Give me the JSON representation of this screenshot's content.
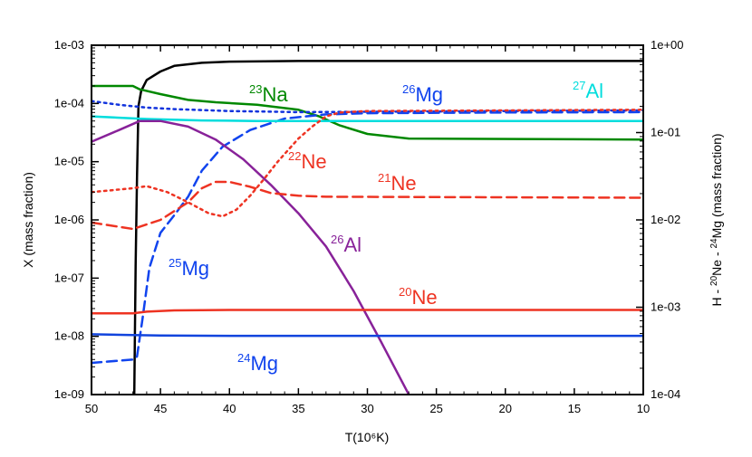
{
  "chart_data": {
    "type": "line",
    "xlabel": "T(10⁶K)",
    "ylabel_left": "X (mass fraction)",
    "ylabel_right_parts": {
      "a": "H - ",
      "b": "20",
      "c": "Ne - ",
      "d": "24",
      "e": "Mg (mass fraction)"
    },
    "x_range": [
      50,
      10
    ],
    "x_ticks": [
      50,
      45,
      40,
      35,
      30,
      25,
      20,
      15,
      10
    ],
    "y_left_range": [
      1e-09,
      0.001
    ],
    "y_left_ticks": [
      "1e-09",
      "1e-08",
      "1e-07",
      "1e-06",
      "1e-05",
      "1e-04",
      "1e-03"
    ],
    "y_right_range": [
      0.0001,
      1
    ],
    "y_right_ticks": [
      "1e-04",
      "1e-03",
      "1e-02",
      "1e-01",
      "1e+00"
    ],
    "series": [
      {
        "id": "h",
        "name": "H",
        "axis": "right",
        "color": "#000000",
        "dash": "solid",
        "points": [
          [
            46.9,
            0.0001
          ],
          [
            46.8,
            0.003
          ],
          [
            46.7,
            0.03
          ],
          [
            46.6,
            0.2
          ],
          [
            46.4,
            0.3
          ],
          [
            46.0,
            0.4
          ],
          [
            45.0,
            0.5
          ],
          [
            44.0,
            0.58
          ],
          [
            42.0,
            0.63
          ],
          [
            40.0,
            0.65
          ],
          [
            35.0,
            0.66
          ],
          [
            10.0,
            0.66
          ]
        ]
      },
      {
        "id": "na23",
        "name": "23Na",
        "axis": "left",
        "color": "#008800",
        "dash": "solid",
        "points": [
          [
            50,
            0.0002
          ],
          [
            47,
            0.0002
          ],
          [
            46.5,
            0.000175
          ],
          [
            45,
            0.000145
          ],
          [
            43,
            0.000115
          ],
          [
            41,
            0.000105
          ],
          [
            38,
            9.5e-05
          ],
          [
            35,
            7.8e-05
          ],
          [
            33.5,
            6e-05
          ],
          [
            32,
            4.2e-05
          ],
          [
            30,
            3e-05
          ],
          [
            27,
            2.5e-05
          ],
          [
            10,
            2.4e-05
          ]
        ]
      },
      {
        "id": "mg26",
        "name": "26Mg",
        "axis": "left",
        "color": "#1133dd",
        "dash": "dotted",
        "points": [
          [
            50,
            0.00011
          ],
          [
            48,
            9.5e-05
          ],
          [
            46,
            8.5e-05
          ],
          [
            44,
            8e-05
          ],
          [
            40,
            7.4e-05
          ],
          [
            35,
            7.1e-05
          ],
          [
            30,
            7.2e-05
          ],
          [
            20,
            7.4e-05
          ],
          [
            10,
            7.6e-05
          ]
        ]
      },
      {
        "id": "mg25",
        "name": "25Mg",
        "axis": "left",
        "color": "#1144ee",
        "dash": "dashed",
        "points": [
          [
            50,
            3.5e-09
          ],
          [
            47,
            4e-09
          ],
          [
            46.7,
            4.5e-09
          ],
          [
            46.3,
            2e-08
          ],
          [
            45.8,
            1.5e-07
          ],
          [
            45,
            6e-07
          ],
          [
            44,
            1.2e-06
          ],
          [
            43,
            2.5e-06
          ],
          [
            42,
            7e-06
          ],
          [
            40.5,
            1.8e-05
          ],
          [
            38.5,
            3.5e-05
          ],
          [
            36,
            5.5e-05
          ],
          [
            33,
            6.5e-05
          ],
          [
            30,
            6.8e-05
          ],
          [
            20,
            7e-05
          ],
          [
            10,
            7.1e-05
          ]
        ]
      },
      {
        "id": "al27",
        "name": "27Al",
        "axis": "left",
        "color": "#00dddd",
        "dash": "solid",
        "points": [
          [
            50,
            6e-05
          ],
          [
            46,
            5.4e-05
          ],
          [
            42,
            5.1e-05
          ],
          [
            38,
            5e-05
          ],
          [
            10,
            5e-05
          ]
        ]
      },
      {
        "id": "al26",
        "name": "26Al",
        "axis": "left",
        "color": "#882299",
        "dash": "solid",
        "points": [
          [
            50,
            2.2e-05
          ],
          [
            48,
            3.5e-05
          ],
          [
            46.5,
            5e-05
          ],
          [
            45,
            5e-05
          ],
          [
            43,
            4e-05
          ],
          [
            41,
            2.4e-05
          ],
          [
            39,
            1.1e-05
          ],
          [
            37,
            4e-06
          ],
          [
            35,
            1.3e-06
          ],
          [
            33,
            3.5e-07
          ],
          [
            31,
            6e-08
          ],
          [
            29,
            8e-09
          ],
          [
            27,
            1e-09
          ]
        ]
      },
      {
        "id": "ne22",
        "name": "22Ne",
        "axis": "left",
        "color": "#ee3322",
        "dash": "dotted",
        "points": [
          [
            50,
            3e-06
          ],
          [
            47,
            3.5e-06
          ],
          [
            46,
            3.8e-06
          ],
          [
            44.5,
            3e-06
          ],
          [
            43,
            2e-06
          ],
          [
            41.5,
            1.3e-06
          ],
          [
            40.5,
            1.15e-06
          ],
          [
            39.5,
            1.5e-06
          ],
          [
            38.5,
            2.6e-06
          ],
          [
            37.5,
            5e-06
          ],
          [
            36.5,
            1e-05
          ],
          [
            35,
            2.5e-05
          ],
          [
            34,
            4e-05
          ],
          [
            33,
            6e-05
          ],
          [
            32,
            7e-05
          ],
          [
            30,
            7.4e-05
          ],
          [
            20,
            7.6e-05
          ],
          [
            10,
            7.8e-05
          ]
        ]
      },
      {
        "id": "ne21",
        "name": "21Ne",
        "axis": "left",
        "color": "#ee3322",
        "dash": "dashed",
        "points": [
          [
            50,
            9e-07
          ],
          [
            47,
            7e-07
          ],
          [
            45,
            1e-06
          ],
          [
            43,
            2e-06
          ],
          [
            42,
            3.5e-06
          ],
          [
            41,
            4.5e-06
          ],
          [
            40,
            4.5e-06
          ],
          [
            38.5,
            3.7e-06
          ],
          [
            37,
            2.9e-06
          ],
          [
            35,
            2.6e-06
          ],
          [
            33,
            2.5e-06
          ],
          [
            10,
            2.4e-06
          ]
        ]
      },
      {
        "id": "ne20",
        "name": "20Ne",
        "axis": "right",
        "color": "#ee3322",
        "dash": "solid",
        "points": [
          [
            50,
            0.00085
          ],
          [
            47,
            0.00085
          ],
          [
            46,
            0.00089
          ],
          [
            44,
            0.00092
          ],
          [
            40,
            0.00093
          ],
          [
            10,
            0.00093
          ]
        ]
      },
      {
        "id": "mg24",
        "name": "24Mg",
        "axis": "right",
        "color": "#1144dd",
        "dash": "solid",
        "points": [
          [
            50,
            0.00049
          ],
          [
            47,
            0.00048
          ],
          [
            45,
            0.000475
          ],
          [
            40,
            0.00047
          ],
          [
            10,
            0.00047
          ]
        ]
      }
    ],
    "annotations": [
      {
        "series": "na23",
        "sup": "23",
        "text": "Na",
        "color": "#008800"
      },
      {
        "series": "mg26",
        "sup": "26",
        "text": "Mg",
        "color": "#1144ee"
      },
      {
        "series": "al27",
        "sup": "27",
        "text": "Al",
        "color": "#00dddd"
      },
      {
        "series": "ne22",
        "sup": "22",
        "text": "Ne",
        "color": "#ee3322"
      },
      {
        "series": "ne21",
        "sup": "21",
        "text": "Ne",
        "color": "#ee3322"
      },
      {
        "series": "al26",
        "sup": "26",
        "text": "Al",
        "color": "#882299"
      },
      {
        "series": "mg25",
        "sup": "25",
        "text": "Mg",
        "color": "#1144ee"
      },
      {
        "series": "ne20",
        "sup": "20",
        "text": "Ne",
        "color": "#ee3322"
      },
      {
        "series": "mg24",
        "sup": "24",
        "text": "Mg",
        "color": "#1144ee"
      }
    ]
  }
}
